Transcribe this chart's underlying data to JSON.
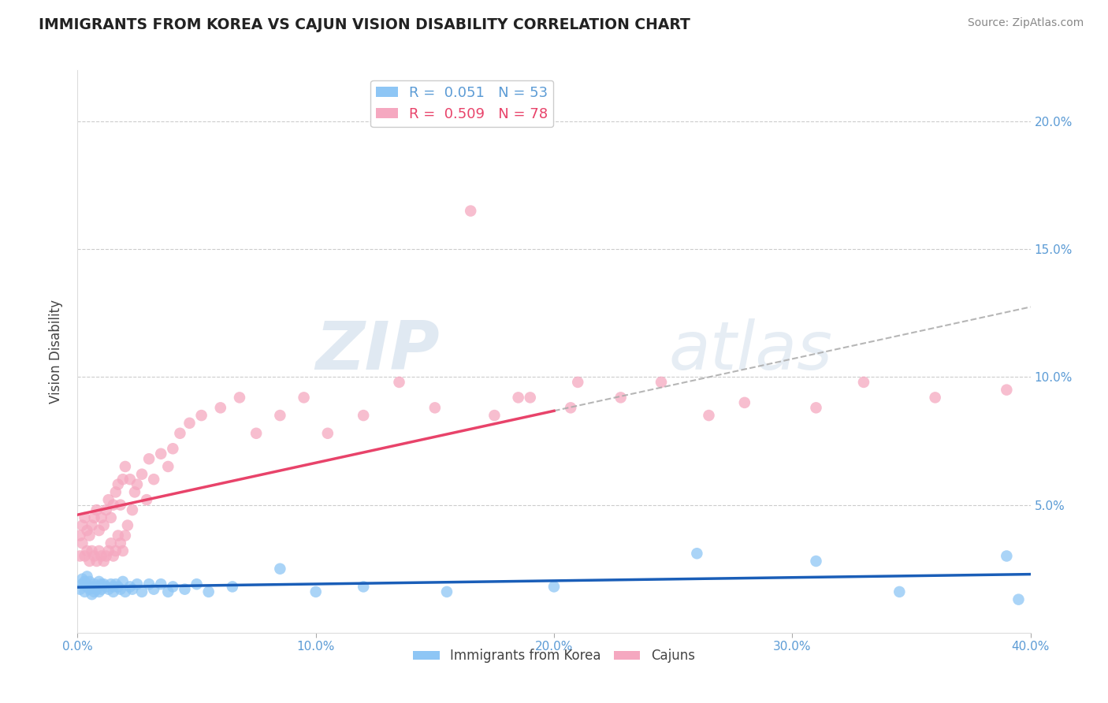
{
  "title": "IMMIGRANTS FROM KOREA VS CAJUN VISION DISABILITY CORRELATION CHART",
  "source": "Source: ZipAtlas.com",
  "ylabel": "Vision Disability",
  "xlim": [
    0.0,
    0.4
  ],
  "ylim": [
    0.0,
    0.22
  ],
  "ytick_vals": [
    0.05,
    0.1,
    0.15,
    0.2
  ],
  "ytick_labels": [
    "5.0%",
    "10.0%",
    "15.0%",
    "20.0%"
  ],
  "xticks": [
    0.0,
    0.1,
    0.2,
    0.3,
    0.4
  ],
  "xtick_labels": [
    "0.0%",
    "10.0%",
    "20.0%",
    "30.0%",
    "40.0%"
  ],
  "korea_R": 0.051,
  "korea_N": 53,
  "cajun_R": 0.509,
  "cajun_N": 78,
  "korea_color": "#8ec6f5",
  "cajun_color": "#f5a8c0",
  "korea_line_color": "#1a5eb8",
  "cajun_line_color": "#e8436a",
  "background_color": "#ffffff",
  "korea_x": [
    0.001,
    0.002,
    0.002,
    0.003,
    0.003,
    0.004,
    0.004,
    0.005,
    0.005,
    0.006,
    0.006,
    0.007,
    0.007,
    0.008,
    0.008,
    0.009,
    0.009,
    0.01,
    0.01,
    0.011,
    0.012,
    0.013,
    0.014,
    0.015,
    0.015,
    0.016,
    0.017,
    0.018,
    0.019,
    0.02,
    0.022,
    0.023,
    0.025,
    0.027,
    0.03,
    0.032,
    0.035,
    0.038,
    0.04,
    0.045,
    0.05,
    0.055,
    0.065,
    0.085,
    0.1,
    0.12,
    0.155,
    0.2,
    0.26,
    0.31,
    0.345,
    0.39,
    0.395
  ],
  "korea_y": [
    0.017,
    0.019,
    0.021,
    0.016,
    0.02,
    0.018,
    0.022,
    0.017,
    0.02,
    0.018,
    0.015,
    0.019,
    0.016,
    0.018,
    0.017,
    0.02,
    0.016,
    0.019,
    0.017,
    0.019,
    0.018,
    0.017,
    0.019,
    0.018,
    0.016,
    0.019,
    0.018,
    0.017,
    0.02,
    0.016,
    0.018,
    0.017,
    0.019,
    0.016,
    0.019,
    0.017,
    0.019,
    0.016,
    0.018,
    0.017,
    0.019,
    0.016,
    0.018,
    0.025,
    0.016,
    0.018,
    0.016,
    0.018,
    0.031,
    0.028,
    0.016,
    0.03,
    0.013
  ],
  "cajun_x": [
    0.001,
    0.001,
    0.002,
    0.002,
    0.003,
    0.003,
    0.004,
    0.004,
    0.005,
    0.005,
    0.006,
    0.006,
    0.007,
    0.007,
    0.008,
    0.008,
    0.009,
    0.009,
    0.01,
    0.01,
    0.011,
    0.011,
    0.012,
    0.012,
    0.013,
    0.013,
    0.014,
    0.014,
    0.015,
    0.015,
    0.016,
    0.016,
    0.017,
    0.017,
    0.018,
    0.018,
    0.019,
    0.019,
    0.02,
    0.02,
    0.021,
    0.022,
    0.023,
    0.024,
    0.025,
    0.027,
    0.029,
    0.03,
    0.032,
    0.035,
    0.038,
    0.04,
    0.043,
    0.047,
    0.052,
    0.06,
    0.068,
    0.075,
    0.085,
    0.095,
    0.105,
    0.12,
    0.135,
    0.15,
    0.165,
    0.175,
    0.19,
    0.21,
    0.228,
    0.245,
    0.265,
    0.28,
    0.31,
    0.33,
    0.36,
    0.39,
    0.207,
    0.185
  ],
  "cajun_y": [
    0.03,
    0.038,
    0.035,
    0.042,
    0.03,
    0.045,
    0.032,
    0.04,
    0.028,
    0.038,
    0.032,
    0.042,
    0.03,
    0.045,
    0.028,
    0.048,
    0.032,
    0.04,
    0.03,
    0.045,
    0.028,
    0.042,
    0.03,
    0.048,
    0.032,
    0.052,
    0.035,
    0.045,
    0.03,
    0.05,
    0.032,
    0.055,
    0.038,
    0.058,
    0.035,
    0.05,
    0.032,
    0.06,
    0.038,
    0.065,
    0.042,
    0.06,
    0.048,
    0.055,
    0.058,
    0.062,
    0.052,
    0.068,
    0.06,
    0.07,
    0.065,
    0.072,
    0.078,
    0.082,
    0.085,
    0.088,
    0.092,
    0.078,
    0.085,
    0.092,
    0.078,
    0.085,
    0.098,
    0.088,
    0.165,
    0.085,
    0.092,
    0.098,
    0.092,
    0.098,
    0.085,
    0.09,
    0.088,
    0.098,
    0.092,
    0.095,
    0.088,
    0.092
  ]
}
